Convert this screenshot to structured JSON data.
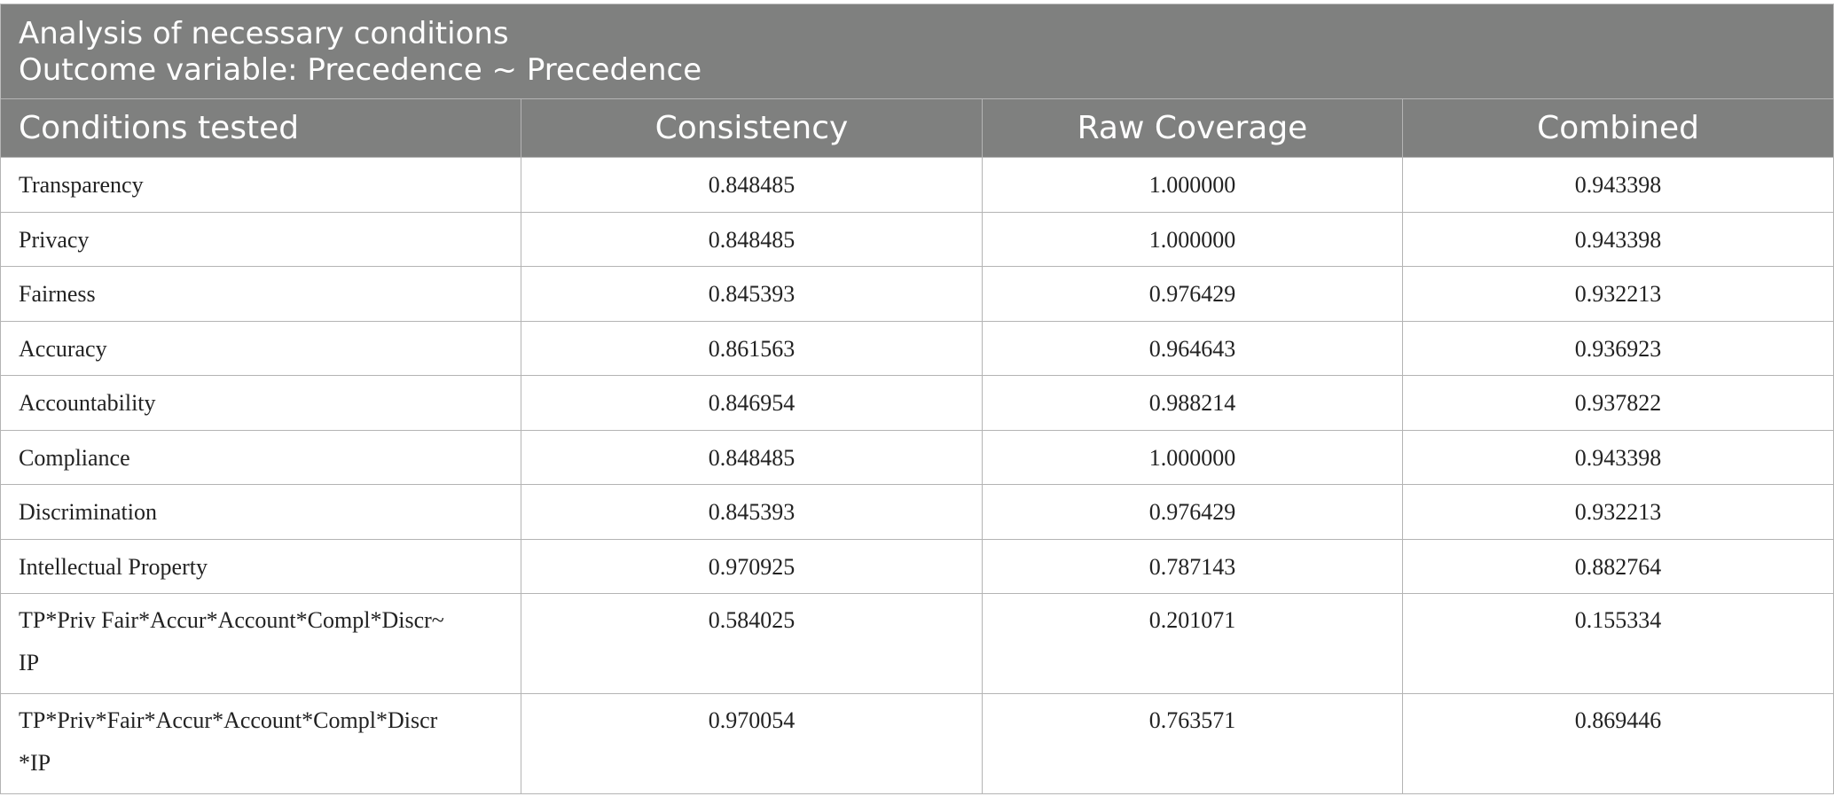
{
  "caption": {
    "line1": "Analysis of necessary conditions",
    "line2": "Outcome variable: Precedence ~ Precedence"
  },
  "columns": [
    "Conditions tested",
    "Consistency",
    "Raw Coverage",
    "Combined"
  ],
  "rows": [
    {
      "condition": "Transparency",
      "consistency": "0.848485",
      "raw_coverage": "1.000000",
      "combined": "0.943398"
    },
    {
      "condition": "Privacy",
      "consistency": "0.848485",
      "raw_coverage": "1.000000",
      "combined": "0.943398"
    },
    {
      "condition": "Fairness",
      "consistency": "0.845393",
      "raw_coverage": "0.976429",
      "combined": "0.932213"
    },
    {
      "condition": "Accuracy",
      "consistency": "0.861563",
      "raw_coverage": "0.964643",
      "combined": "0.936923"
    },
    {
      "condition": "Accountability",
      "consistency": "0.846954",
      "raw_coverage": "0.988214",
      "combined": "0.937822"
    },
    {
      "condition": "Compliance",
      "consistency": "0.848485",
      "raw_coverage": "1.000000",
      "combined": "0.943398"
    },
    {
      "condition": "Discrimination",
      "consistency": "0.845393",
      "raw_coverage": "0.976429",
      "combined": "0.932213"
    },
    {
      "condition": "Intellectual Property",
      "consistency": "0.970925",
      "raw_coverage": "0.787143",
      "combined": "0.882764"
    },
    {
      "condition_line1": "TP*Priv Fair*Accur*Account*Compl*Discr~",
      "condition_line2": "IP",
      "consistency": "0.584025",
      "raw_coverage": "0.201071",
      "combined": "0.155334"
    },
    {
      "condition_line1": "TP*Priv*Fair*Accur*Account*Compl*Discr",
      "condition_line2": "*IP",
      "consistency": "0.970054",
      "raw_coverage": "0.763571",
      "combined": "0.869446"
    }
  ]
}
